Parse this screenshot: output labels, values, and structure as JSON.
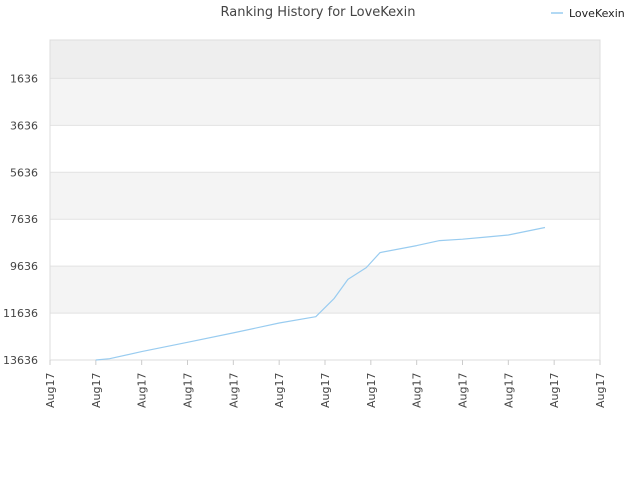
{
  "chart_data": {
    "type": "line",
    "title": "Ranking History for LoveKexin",
    "xlabel": "",
    "ylabel": "",
    "x_tick_labels": [
      "Aug17",
      "Aug17",
      "Aug17",
      "Aug17",
      "Aug17",
      "Aug17",
      "Aug17",
      "Aug17",
      "Aug17",
      "Aug17",
      "Aug17",
      "Aug17",
      "Aug17"
    ],
    "y_tick_labels": [
      "1636",
      "3636",
      "5636",
      "7636",
      "9636",
      "11636",
      "13636"
    ],
    "y_ticks": [
      1636,
      3636,
      5636,
      7636,
      9636,
      11636,
      13636
    ],
    "ylim": [
      13636,
      0
    ],
    "y_reversed": true,
    "xlim": [
      0,
      12
    ],
    "grid": true,
    "legend_position": "top-right",
    "series": [
      {
        "name": "LoveKexin",
        "color": "#99ccf0",
        "x": [
          1.0,
          1.3,
          2.0,
          3.0,
          4.0,
          5.0,
          5.8,
          6.2,
          6.5,
          6.9,
          7.2,
          8.0,
          8.5,
          9.0,
          9.5,
          10.0,
          10.8
        ],
        "y": [
          13636,
          13580,
          13280,
          12880,
          12480,
          12060,
          11790,
          11010,
          10200,
          9700,
          9060,
          8760,
          8550,
          8490,
          8400,
          8310,
          7990
        ]
      }
    ]
  }
}
